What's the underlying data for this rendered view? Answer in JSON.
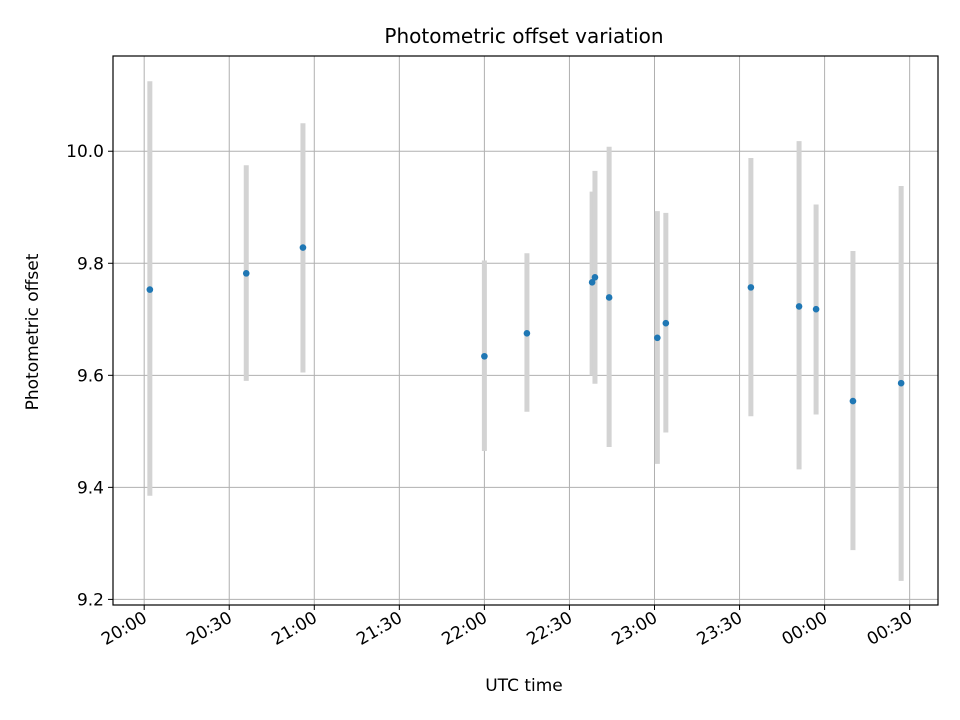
{
  "chart_data": {
    "type": "scatter",
    "title": "Photometric offset variation",
    "xlabel": "UTC time",
    "ylabel": "Photometric offset",
    "x_ticks": [
      "20:00",
      "20:30",
      "21:00",
      "21:30",
      "22:00",
      "22:30",
      "23:00",
      "23:30",
      "00:00",
      "00:30"
    ],
    "x_tick_minutes": [
      0,
      30,
      60,
      90,
      120,
      150,
      180,
      210,
      240,
      270
    ],
    "x_range_minutes": [
      -11,
      280
    ],
    "y_ticks": [
      9.2,
      9.4,
      9.6,
      9.8,
      10.0
    ],
    "y_tick_labels": [
      "9.2",
      "9.4",
      "9.6",
      "9.8",
      "10.0"
    ],
    "ylim": [
      9.19,
      10.17
    ],
    "grid": true,
    "marker_color": "#1f77b4",
    "errorbar_color": "#d3d3d3",
    "points": [
      {
        "minute": 2,
        "y": 9.753,
        "y_low": 9.385,
        "y_high": 10.125
      },
      {
        "minute": 36,
        "y": 9.782,
        "y_low": 9.59,
        "y_high": 9.975
      },
      {
        "minute": 56,
        "y": 9.828,
        "y_low": 9.605,
        "y_high": 10.05
      },
      {
        "minute": 120,
        "y": 9.634,
        "y_low": 9.465,
        "y_high": 9.805
      },
      {
        "minute": 135,
        "y": 9.675,
        "y_low": 9.535,
        "y_high": 9.818
      },
      {
        "minute": 158,
        "y": 9.766,
        "y_low": 9.6,
        "y_high": 9.928
      },
      {
        "minute": 159,
        "y": 9.775,
        "y_low": 9.585,
        "y_high": 9.965
      },
      {
        "minute": 164,
        "y": 9.739,
        "y_low": 9.472,
        "y_high": 10.008
      },
      {
        "minute": 181,
        "y": 9.667,
        "y_low": 9.442,
        "y_high": 9.893
      },
      {
        "minute": 184,
        "y": 9.693,
        "y_low": 9.498,
        "y_high": 9.89
      },
      {
        "minute": 214,
        "y": 9.757,
        "y_low": 9.527,
        "y_high": 9.988
      },
      {
        "minute": 231,
        "y": 9.723,
        "y_low": 9.432,
        "y_high": 10.018
      },
      {
        "minute": 237,
        "y": 9.718,
        "y_low": 9.53,
        "y_high": 9.905
      },
      {
        "minute": 250,
        "y": 9.554,
        "y_low": 9.288,
        "y_high": 9.822
      },
      {
        "minute": 267,
        "y": 9.586,
        "y_low": 9.233,
        "y_high": 9.938
      }
    ]
  }
}
